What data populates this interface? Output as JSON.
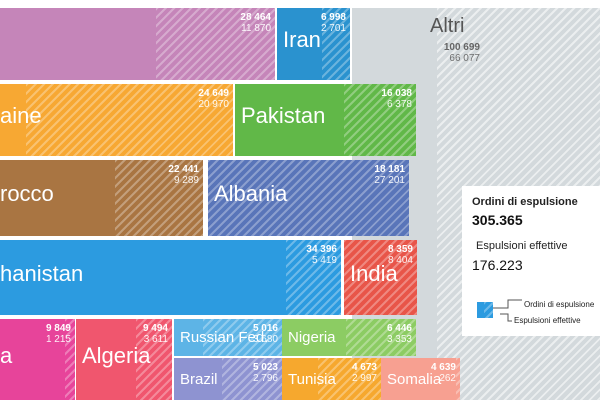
{
  "chart_data": {
    "type": "treemap",
    "series_names": [
      "Ordini di espulsione",
      "Espulsioni effettive"
    ],
    "items": [
      {
        "label": "",
        "ordini": 28464,
        "effettive": 11870,
        "ordini_text": "28 464",
        "effettive_text": "11 870",
        "color": "#c585b9"
      },
      {
        "label": "Iran",
        "ordini": 6998,
        "effettive": 2701,
        "ordini_text": "6 998",
        "effettive_text": "2 701",
        "color": "#2a92cf"
      },
      {
        "label": "Altri",
        "ordini": 100699,
        "effettive": 66077,
        "ordini_text": "100 699",
        "effettive_text": "66 077",
        "color": "#d3d9dc"
      },
      {
        "label": "aine",
        "ordini": 24649,
        "effettive": 20970,
        "ordini_text": "24 649",
        "effettive_text": "20 970",
        "color": "#f7a833"
      },
      {
        "label": "Pakistan",
        "ordini": 16038,
        "effettive": 6378,
        "ordini_text": "16 038",
        "effettive_text": "6 378",
        "color": "#61b848"
      },
      {
        "label": "rocco",
        "ordini": 22441,
        "effettive": 9289,
        "ordini_text": "22 441",
        "effettive_text": "9 289",
        "color": "#a97542"
      },
      {
        "label": "Albania",
        "ordini": 18181,
        "effettive": 27201,
        "ordini_text": "18 181",
        "effettive_text": "27 201",
        "color": "#5975b9"
      },
      {
        "label": "hanistan",
        "ordini": 34396,
        "effettive": 5419,
        "ordini_text": "34 396",
        "effettive_text": "5 419",
        "color": "#2c9be0"
      },
      {
        "label": "India",
        "ordini": 8359,
        "effettive": 8404,
        "ordini_text": "8 359",
        "effettive_text": "8 404",
        "color": "#e85549"
      },
      {
        "label": "a",
        "ordini": 9849,
        "effettive": 1215,
        "ordini_text": "9 849",
        "effettive_text": "1 215",
        "color": "#e7449a"
      },
      {
        "label": "Algeria",
        "ordini": 9494,
        "effettive": 3611,
        "ordini_text": "9 494",
        "effettive_text": "3 611",
        "color": "#f0566e"
      },
      {
        "label": "Russian Fed.",
        "ordini": 5016,
        "effettive": 3680,
        "ordini_text": "5 016",
        "effettive_text": "3 680",
        "color": "#5db4e6"
      },
      {
        "label": "Nigeria",
        "ordini": 6446,
        "effettive": 3353,
        "ordini_text": "6 446",
        "effettive_text": "3 353",
        "color": "#8ccc63"
      },
      {
        "label": "Brazil",
        "ordini": 5023,
        "effettive": 2796,
        "ordini_text": "5 023",
        "effettive_text": "2 796",
        "color": "#8e93d1"
      },
      {
        "label": "Tunisia",
        "ordini": 4673,
        "effettive": 2997,
        "ordini_text": "4 673",
        "effettive_text": "2 997",
        "color": "#f6a82e"
      },
      {
        "label": "Somalia",
        "ordini": 4639,
        "effettive": 262,
        "ordini_text": "4 639",
        "effettive_text": "262",
        "color": "#f7a091"
      }
    ],
    "legend": {
      "title": "Ordini di espulsione",
      "total": "305.365",
      "subtitle": "Espulsioni effettive",
      "subtotal": "176.223",
      "key_ordini": "Ordini di espulsione",
      "key_effettive": "Espulsioni effettive"
    }
  }
}
